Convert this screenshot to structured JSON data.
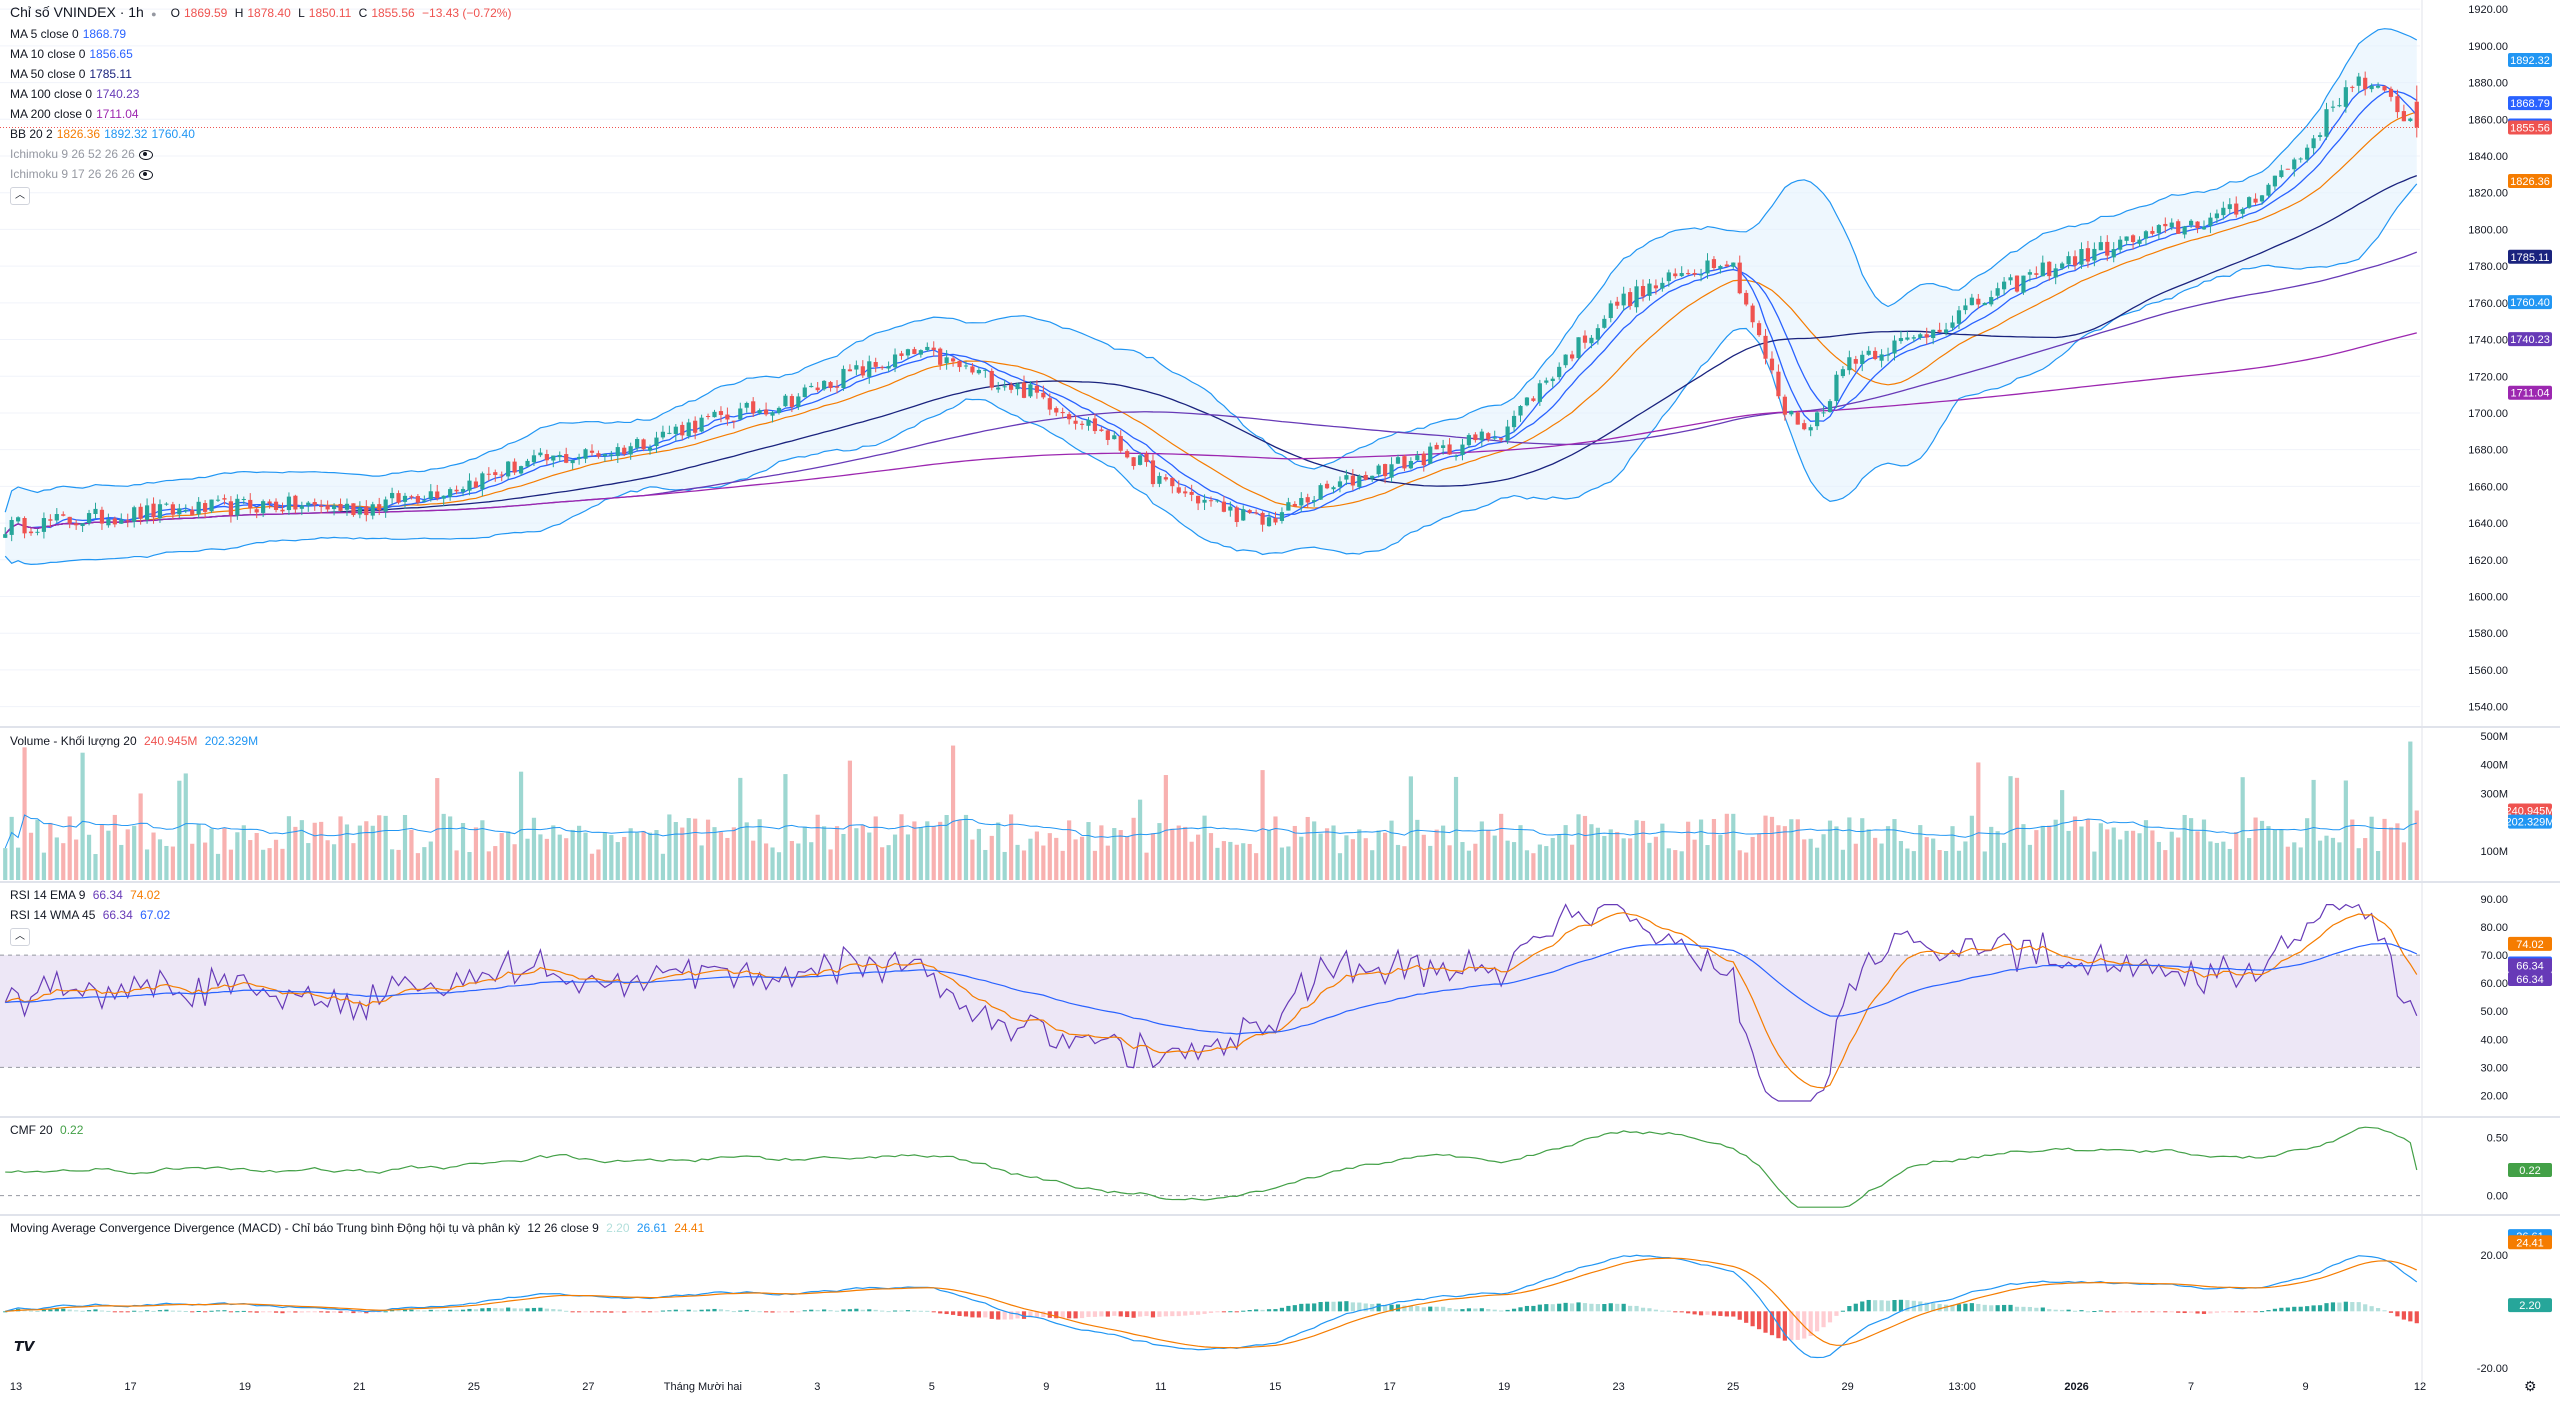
{
  "header": {
    "symbol": "Chỉ số VNINDEX · 1h",
    "ohlc": {
      "o_label": "O",
      "o": "1869.59",
      "h_label": "H",
      "h": "1878.40",
      "l_label": "L",
      "l": "1850.11",
      "c_label": "C",
      "c": "1855.56",
      "change": "−13.43 (−0.72%)"
    }
  },
  "indicators": [
    {
      "name": "MA 5 close 0",
      "values": [
        "1868.79"
      ],
      "colors": [
        "#2962ff"
      ]
    },
    {
      "name": "MA 10 close 0",
      "values": [
        "1856.65"
      ],
      "colors": [
        "#2962ff"
      ]
    },
    {
      "name": "MA 50 close 0",
      "values": [
        "1785.11"
      ],
      "colors": [
        "#1a237e"
      ]
    },
    {
      "name": "MA 100 close 0",
      "values": [
        "1740.23"
      ],
      "colors": [
        "#673ab7"
      ]
    },
    {
      "name": "MA 200 close 0",
      "values": [
        "1711.04"
      ],
      "colors": [
        "#9c27b0"
      ]
    },
    {
      "name": "BB 20 2",
      "values": [
        "1826.36",
        "1892.32",
        "1760.40"
      ],
      "colors": [
        "#f57c00",
        "#2196f3",
        "#2196f3"
      ]
    },
    {
      "name": "Ichimoku 9 26 52 26 26",
      "values": [],
      "colors": [],
      "hidden": true
    },
    {
      "name": "Ichimoku 9 17 26 26 26",
      "values": [],
      "colors": [],
      "hidden": true
    }
  ],
  "volume_legend": {
    "name": "Volume - Khối lượng 20",
    "v1": "240.945M",
    "v2": "202.329M"
  },
  "rsi_legend": [
    {
      "name": "RSI 14 EMA 9",
      "v1": "66.34",
      "v2": "74.02"
    },
    {
      "name": "RSI 14 WMA 45",
      "v1": "66.34",
      "v2": "67.02"
    }
  ],
  "cmf_legend": {
    "name": "CMF 20",
    "v1": "0.22"
  },
  "macd_legend": {
    "name": "Moving Average Convergence Divergence (MACD) - Chỉ báo Trung bình Động hội tụ và phân kỳ",
    "params": "12 26 close 9",
    "v1": "2.20",
    "v2": "26.61",
    "v3": "24.41"
  },
  "colors": {
    "up": "#26a69a",
    "down": "#ef5350",
    "bb_fill": "#e3f2fd",
    "rsi_band": "#ede7f6"
  },
  "chart_data": [
    {
      "type": "candlestick",
      "title": "Chỉ số VNINDEX · 1h",
      "ylim": [
        1530,
        1925
      ],
      "y_ticks": [
        1540,
        1560,
        1580,
        1600,
        1620,
        1640,
        1660,
        1680,
        1700,
        1720,
        1740,
        1760,
        1780,
        1800,
        1820,
        1840,
        1860,
        1880,
        1900,
        1920
      ],
      "x_labels": [
        "13",
        "17",
        "19",
        "21",
        "25",
        "27",
        "Tháng Mười hai",
        "3",
        "5",
        "9",
        "11",
        "15",
        "17",
        "19",
        "23",
        "25",
        "29",
        "13:00",
        "2026",
        "7",
        "9",
        "12"
      ],
      "close_anchors": [
        [
          0,
          1638
        ],
        [
          20,
          1645
        ],
        [
          40,
          1650
        ],
        [
          55,
          1648
        ],
        [
          70,
          1660
        ],
        [
          80,
          1672
        ],
        [
          95,
          1680
        ],
        [
          105,
          1692
        ],
        [
          120,
          1705
        ],
        [
          130,
          1720
        ],
        [
          142,
          1733
        ],
        [
          148,
          1725
        ],
        [
          160,
          1710
        ],
        [
          170,
          1690
        ],
        [
          180,
          1660
        ],
        [
          195,
          1640
        ],
        [
          203,
          1655
        ],
        [
          212,
          1668
        ],
        [
          222,
          1678
        ],
        [
          232,
          1690
        ],
        [
          242,
          1730
        ],
        [
          250,
          1760
        ],
        [
          260,
          1775
        ],
        [
          266,
          1785
        ],
        [
          268,
          1780
        ],
        [
          272,
          1740
        ],
        [
          276,
          1700
        ],
        [
          280,
          1692
        ],
        [
          286,
          1730
        ],
        [
          296,
          1740
        ],
        [
          306,
          1760
        ],
        [
          316,
          1778
        ],
        [
          326,
          1790
        ],
        [
          336,
          1800
        ],
        [
          346,
          1810
        ],
        [
          356,
          1840
        ],
        [
          364,
          1882
        ],
        [
          370,
          1870
        ],
        [
          374,
          1855.56
        ]
      ],
      "price_labels": [
        {
          "value": "1892.32",
          "price": 1892.32,
          "color": "#2196f3"
        },
        {
          "value": "1868.79",
          "price": 1868.79,
          "color": "#2962ff"
        },
        {
          "value": "1856.65",
          "price": 1856.65,
          "color": "#2962ff"
        },
        {
          "value": "1855.56",
          "price": 1855.56,
          "color": "#ef5350"
        },
        {
          "value": "1826.36",
          "price": 1826.36,
          "color": "#f57c00"
        },
        {
          "value": "1785.11",
          "price": 1785.11,
          "color": "#1a237e"
        },
        {
          "value": "1760.40",
          "price": 1760.4,
          "color": "#2196f3"
        },
        {
          "value": "1740.23",
          "price": 1740.23,
          "color": "#673ab7"
        },
        {
          "value": "1711.04",
          "price": 1711.04,
          "color": "#9c27b0"
        }
      ]
    },
    {
      "type": "bar",
      "title": "Volume - Khối lượng 20",
      "y_ticks": [
        "100M",
        "300M",
        "400M",
        "500M"
      ],
      "y_tick_values": [
        100,
        300,
        400,
        500
      ],
      "ylim": [
        0,
        520
      ],
      "labels": [
        {
          "value": "240.945M",
          "num": 240.945,
          "color": "#ef5350"
        },
        {
          "value": "202.329M",
          "num": 202.329,
          "color": "#2196f3"
        }
      ]
    },
    {
      "type": "line",
      "title": "RSI 14",
      "ylim": [
        13,
        95
      ],
      "y_ticks": [
        "20.00",
        "30.00",
        "40.00",
        "50.00",
        "60.00",
        "70.00",
        "80.00",
        "90.00"
      ],
      "y_tick_values": [
        20,
        30,
        40,
        50,
        60,
        70,
        80,
        90
      ],
      "band": [
        30,
        70
      ],
      "labels": [
        {
          "value": "74.02",
          "num": 74.02,
          "color": "#f57c00"
        },
        {
          "value": "67.02",
          "num": 67.02,
          "color": "#2962ff"
        },
        {
          "value": "66.34",
          "num": 66.34,
          "color": "#673ab7"
        },
        {
          "value": "66.34",
          "num": 61.5,
          "color": "#673ab7"
        }
      ]
    },
    {
      "type": "line",
      "title": "CMF 20",
      "ylim": [
        -0.15,
        0.65
      ],
      "y_ticks": [
        "0.00",
        "0.50"
      ],
      "y_tick_values": [
        0,
        0.5
      ],
      "labels": [
        {
          "value": "0.22",
          "num": 0.22,
          "color": "#43a047"
        }
      ]
    },
    {
      "type": "line",
      "title": "MACD 12 26 close 9",
      "ylim": [
        -25,
        33
      ],
      "y_ticks": [
        "20.00",
        "-20.00"
      ],
      "y_tick_values": [
        20,
        -20
      ],
      "labels": [
        {
          "value": "26.61",
          "num": 26.61,
          "color": "#2196f3"
        },
        {
          "value": "24.41",
          "num": 24.41,
          "color": "#f57c00"
        },
        {
          "value": "2.20",
          "num": 2.2,
          "color": "#26a69a"
        }
      ]
    }
  ]
}
